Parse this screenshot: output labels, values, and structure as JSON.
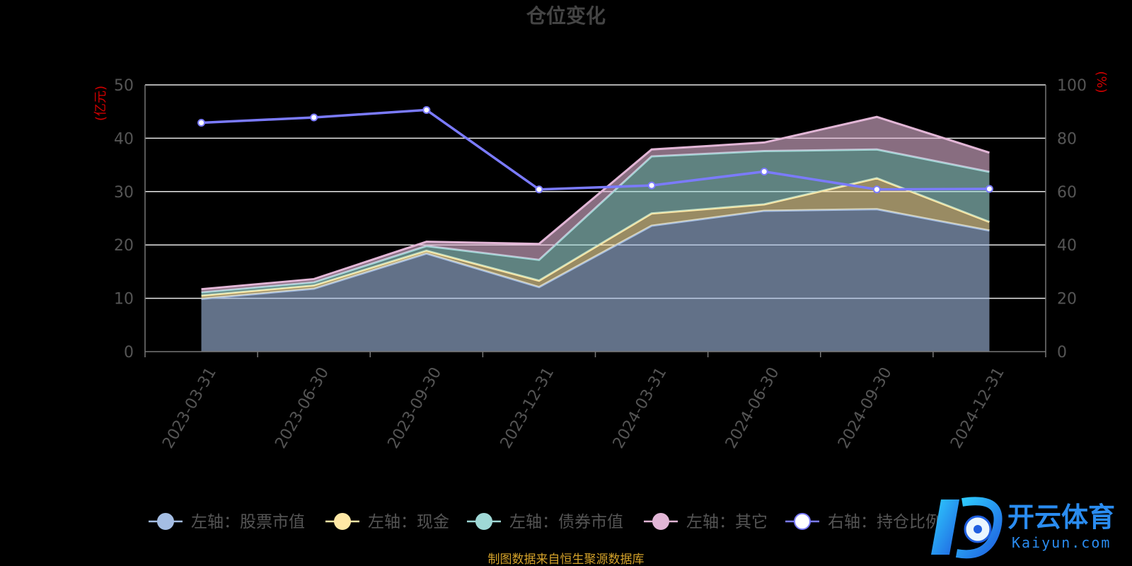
{
  "chart_data": {
    "type": "area",
    "title": "仓位变化",
    "source": "制图数据来自恒生聚源数据库",
    "left_axis_unit": "(亿元)",
    "right_axis_unit": "(%)",
    "ylim_left": [
      0,
      50
    ],
    "ylim_right": [
      0,
      100
    ],
    "yticks_left": [
      "0",
      "10",
      "20",
      "30",
      "40",
      "50"
    ],
    "yticks_right": [
      "0",
      "20",
      "40",
      "60",
      "80",
      "100"
    ],
    "grid": true,
    "legend_position": "bottom",
    "categories": [
      "2023-03-31",
      "2023-06-30",
      "2023-09-30",
      "2023-12-31",
      "2024-03-31",
      "2024-06-30",
      "2024-09-30",
      "2024-12-31"
    ],
    "stacked_series": [
      {
        "name": "左轴：股票市值",
        "values": [
          9.9,
          11.8,
          18.4,
          12.1,
          23.6,
          26.4,
          26.7,
          22.7
        ],
        "color": "#a4bde3"
      },
      {
        "name": "左轴：现金",
        "values": [
          0.6,
          0.6,
          0.5,
          1.2,
          2.3,
          1.2,
          5.8,
          1.6
        ],
        "color": "#ffe8a5"
      },
      {
        "name": "左轴：债券市值",
        "values": [
          0.6,
          0.6,
          0.9,
          3.9,
          10.7,
          10.0,
          5.4,
          9.4
        ],
        "color": "#9fd8d6"
      },
      {
        "name": "左轴：其它",
        "values": [
          0.6,
          0.6,
          0.8,
          3.0,
          1.3,
          1.6,
          6.1,
          3.6
        ],
        "color": "#e2b6d6"
      }
    ],
    "line_series": {
      "name": "右轴：持仓比例",
      "values": [
        85.8,
        87.8,
        90.6,
        60.8,
        62.3,
        67.5,
        60.8,
        61.0
      ],
      "color": "#7b7bff"
    }
  },
  "watermark": {
    "brand": "开云体育",
    "domain": "Kaiyun.com"
  }
}
